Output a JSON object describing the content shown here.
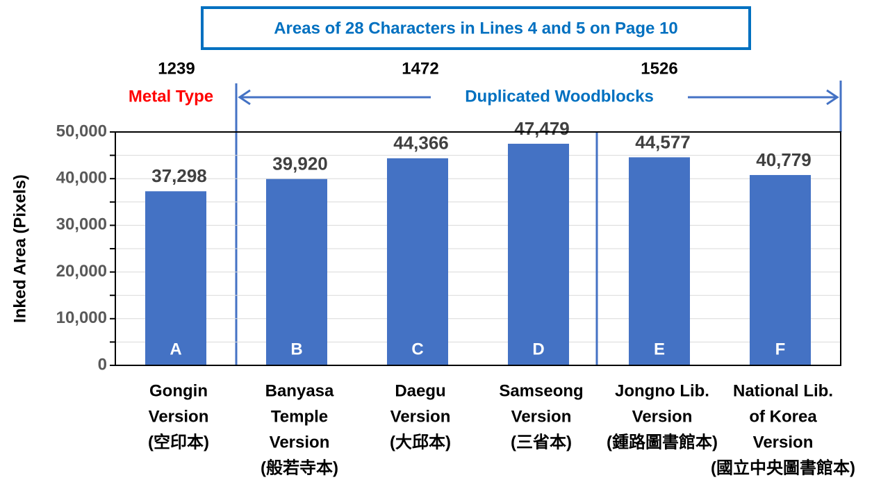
{
  "chart_data": {
    "type": "bar",
    "title": "Areas of 28 Characters in Lines 4 and 5 on Page 10",
    "y_label": "Inked Area (Pixels)",
    "categories": [
      [
        "Gongin",
        "Version",
        "(空印本)"
      ],
      [
        "Banyasa",
        "Temple",
        "Version",
        "(般若寺本)"
      ],
      [
        "Daegu",
        "Version",
        "(大邱本)"
      ],
      [
        "Samseong",
        "Version",
        "(三省本)"
      ],
      [
        "Jongno Lib.",
        "Version",
        "(鍾路圖書館本)"
      ],
      [
        "National Lib.",
        "of Korea",
        "Version",
        "(國立中央圖書館本)"
      ]
    ],
    "bar_letters": [
      "A",
      "B",
      "C",
      "D",
      "E",
      "F"
    ],
    "values": [
      37298,
      39920,
      44366,
      47479,
      44577,
      40779
    ],
    "value_labels": [
      "37,298",
      "39,920",
      "44,366",
      "47,479",
      "44,577",
      "40,779"
    ],
    "color": "#4472c4",
    "ylim": [
      0,
      50000
    ],
    "yticks": [
      {
        "value": 0,
        "label": "0"
      },
      {
        "value": 10000,
        "label": "10,000"
      },
      {
        "value": 20000,
        "label": "20,000"
      },
      {
        "value": 30000,
        "label": "30,000"
      },
      {
        "value": 40000,
        "label": "40,000"
      },
      {
        "value": 50000,
        "label": "50,000"
      }
    ],
    "minor_yticks": [
      5000,
      15000,
      25000,
      35000,
      45000
    ],
    "grid": true,
    "annotations": {
      "years": [
        "1239",
        "1472",
        "1526"
      ],
      "metal_type": "Metal Type",
      "woodblocks": "Duplicated Woodblocks"
    }
  }
}
